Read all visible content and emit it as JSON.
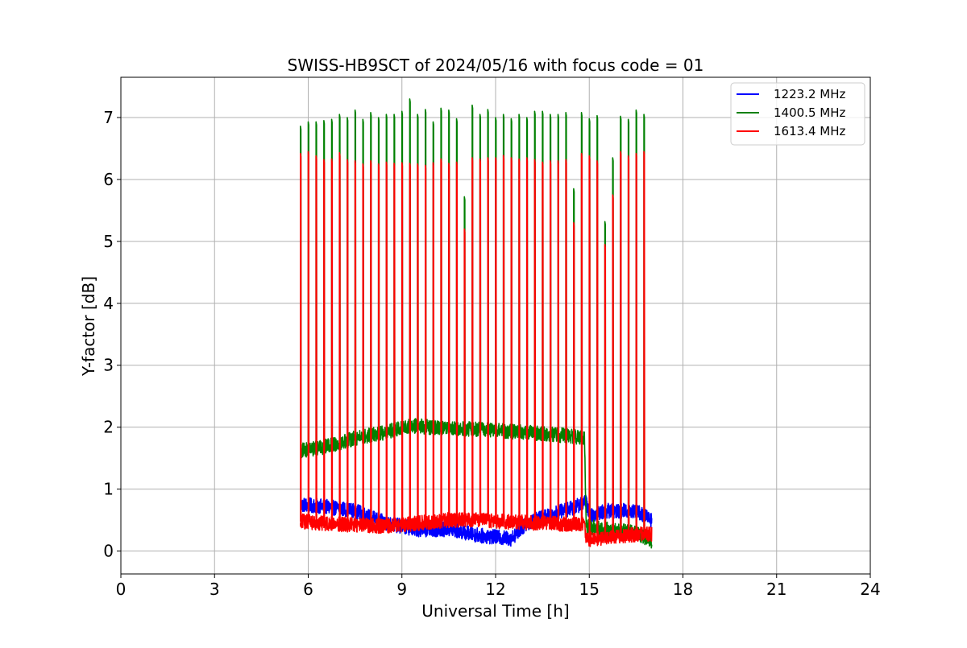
{
  "chart_data": {
    "type": "line",
    "title": "SWISS-HB9SCT of 2024/05/16 with focus code = 01",
    "xlabel": "Universal Time [h]",
    "ylabel": "Y-factor [dB]",
    "xlim": [
      0,
      24
    ],
    "ylim": [
      -0.37,
      7.65
    ],
    "xticks": [
      0,
      3,
      6,
      9,
      12,
      15,
      18,
      21,
      24
    ],
    "yticks": [
      0,
      1,
      2,
      3,
      4,
      5,
      6,
      7
    ],
    "grid": true,
    "legend_position": "top-right",
    "series": [
      {
        "name": "1223.2 MHz",
        "color": "#0000ff",
        "baseline": [
          [
            5.75,
            0.75
          ],
          [
            6.5,
            0.72
          ],
          [
            7.5,
            0.65
          ],
          [
            8.5,
            0.45
          ],
          [
            9.5,
            0.35
          ],
          [
            10.5,
            0.35
          ],
          [
            11.5,
            0.25
          ],
          [
            12.5,
            0.2
          ],
          [
            13.0,
            0.45
          ],
          [
            13.5,
            0.55
          ],
          [
            14.5,
            0.7
          ],
          [
            14.9,
            0.8
          ],
          [
            15.0,
            0.55
          ],
          [
            15.5,
            0.65
          ],
          [
            16.5,
            0.65
          ],
          [
            17.0,
            0.5
          ]
        ],
        "baseline_noise": 0.12,
        "spikes": []
      },
      {
        "name": "1400.5 MHz",
        "color": "#008000",
        "baseline": [
          [
            5.75,
            1.62
          ],
          [
            6.5,
            1.68
          ],
          [
            7.5,
            1.82
          ],
          [
            8.5,
            1.92
          ],
          [
            9.0,
            2.0
          ],
          [
            9.5,
            2.02
          ],
          [
            10.5,
            1.97
          ],
          [
            11.5,
            1.97
          ],
          [
            12.5,
            1.93
          ],
          [
            13.5,
            1.9
          ],
          [
            14.5,
            1.85
          ],
          [
            14.85,
            1.8
          ],
          [
            14.9,
            0.4
          ],
          [
            15.5,
            0.35
          ],
          [
            16.5,
            0.3
          ],
          [
            17.0,
            0.15
          ]
        ],
        "baseline_noise": 0.12,
        "spikes": [
          [
            5.75,
            6.86
          ],
          [
            6.0,
            6.93
          ],
          [
            6.25,
            6.93
          ],
          [
            6.5,
            6.95
          ],
          [
            6.75,
            6.97
          ],
          [
            7.0,
            7.05
          ],
          [
            7.25,
            7.0
          ],
          [
            7.5,
            7.12
          ],
          [
            7.75,
            6.97
          ],
          [
            8.0,
            7.08
          ],
          [
            8.25,
            7.0
          ],
          [
            8.5,
            7.05
          ],
          [
            8.75,
            7.05
          ],
          [
            9.0,
            7.1
          ],
          [
            9.25,
            7.3
          ],
          [
            9.5,
            7.05
          ],
          [
            9.75,
            7.13
          ],
          [
            10.0,
            6.93
          ],
          [
            10.25,
            7.15
          ],
          [
            10.5,
            7.12
          ],
          [
            10.75,
            6.98
          ],
          [
            11.0,
            5.72
          ],
          [
            11.25,
            7.2
          ],
          [
            11.5,
            7.05
          ],
          [
            11.75,
            7.13
          ],
          [
            12.0,
            7.0
          ],
          [
            12.25,
            7.05
          ],
          [
            12.5,
            6.98
          ],
          [
            12.75,
            7.05
          ],
          [
            13.0,
            7.0
          ],
          [
            13.25,
            7.1
          ],
          [
            13.5,
            7.1
          ],
          [
            13.75,
            7.05
          ],
          [
            14.0,
            7.05
          ],
          [
            14.25,
            7.08
          ],
          [
            14.5,
            5.85
          ],
          [
            14.75,
            7.08
          ],
          [
            15.0,
            6.98
          ],
          [
            15.25,
            7.03
          ],
          [
            15.5,
            5.32
          ],
          [
            15.75,
            6.35
          ],
          [
            16.0,
            7.02
          ],
          [
            16.25,
            6.97
          ],
          [
            16.5,
            7.12
          ],
          [
            16.75,
            7.05
          ]
        ]
      },
      {
        "name": "1613.4 MHz",
        "color": "#ff0000",
        "baseline": [
          [
            5.75,
            0.48
          ],
          [
            6.5,
            0.45
          ],
          [
            7.5,
            0.42
          ],
          [
            8.5,
            0.4
          ],
          [
            9.5,
            0.45
          ],
          [
            10.5,
            0.5
          ],
          [
            11.5,
            0.5
          ],
          [
            12.5,
            0.47
          ],
          [
            13.5,
            0.45
          ],
          [
            14.5,
            0.43
          ],
          [
            14.85,
            0.45
          ],
          [
            14.9,
            0.18
          ],
          [
            15.5,
            0.22
          ],
          [
            16.5,
            0.27
          ],
          [
            17.0,
            0.27
          ]
        ],
        "baseline_noise": 0.12,
        "spikes": [
          [
            5.75,
            6.42
          ],
          [
            6.0,
            6.45
          ],
          [
            6.25,
            6.38
          ],
          [
            6.5,
            6.32
          ],
          [
            6.75,
            6.33
          ],
          [
            7.0,
            6.43
          ],
          [
            7.25,
            6.32
          ],
          [
            7.5,
            6.3
          ],
          [
            7.75,
            6.25
          ],
          [
            8.0,
            6.3
          ],
          [
            8.25,
            6.25
          ],
          [
            8.5,
            6.28
          ],
          [
            8.75,
            6.26
          ],
          [
            9.0,
            6.27
          ],
          [
            9.25,
            6.26
          ],
          [
            9.5,
            6.25
          ],
          [
            9.75,
            6.23
          ],
          [
            10.0,
            6.27
          ],
          [
            10.25,
            6.33
          ],
          [
            10.5,
            6.26
          ],
          [
            10.75,
            6.28
          ],
          [
            11.0,
            5.2
          ],
          [
            11.25,
            6.35
          ],
          [
            11.5,
            6.33
          ],
          [
            11.75,
            6.35
          ],
          [
            12.0,
            6.35
          ],
          [
            12.25,
            6.39
          ],
          [
            12.5,
            6.35
          ],
          [
            12.75,
            6.33
          ],
          [
            13.0,
            6.35
          ],
          [
            13.25,
            6.32
          ],
          [
            13.5,
            6.28
          ],
          [
            13.75,
            6.3
          ],
          [
            14.0,
            6.3
          ],
          [
            14.25,
            6.32
          ],
          [
            14.5,
            5.3
          ],
          [
            14.75,
            6.42
          ],
          [
            15.0,
            6.38
          ],
          [
            15.25,
            6.3
          ],
          [
            15.5,
            4.95
          ],
          [
            15.75,
            5.75
          ],
          [
            16.0,
            6.45
          ],
          [
            16.25,
            6.38
          ],
          [
            16.5,
            6.42
          ],
          [
            16.75,
            6.45
          ]
        ]
      }
    ]
  }
}
